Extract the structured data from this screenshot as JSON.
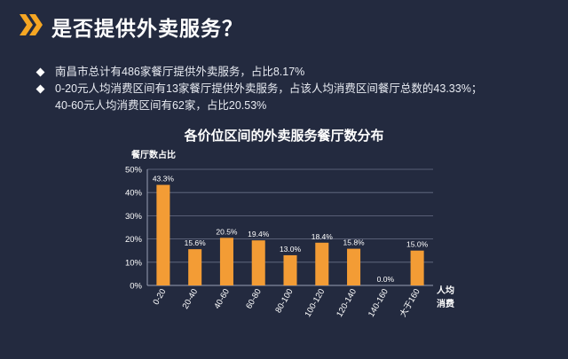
{
  "header": {
    "title": "是否提供外卖服务？"
  },
  "bullets": [
    "南昌市总计有486家餐厅提供外卖服务，占比8.17%",
    "0-20元人均消费区间有13家餐厅提供外卖服务，占该人均消费区间餐厅总数的43.33%；",
    "40-60元人均消费区间有62家，占比20.53%"
  ],
  "colors": {
    "background": "#232a3f",
    "bar": "#f39c35",
    "accent": "#f5a623"
  },
  "chart_data": {
    "type": "bar",
    "title": "各价位区间的外卖服务餐厅数分布",
    "ylabel": "餐厅数占比",
    "xlabel": "人均消费",
    "ylim": [
      0,
      50
    ],
    "ytick_labels": [
      "0%",
      "10%",
      "20%",
      "30%",
      "40%",
      "50%"
    ],
    "categories": [
      "0-20",
      "20-40",
      "40-60",
      "60-80",
      "80-100",
      "100-120",
      "120-140",
      "140-160",
      "大于160"
    ],
    "values": [
      43.3,
      15.6,
      20.5,
      19.4,
      13.0,
      18.4,
      15.8,
      0.0,
      15.0
    ],
    "value_labels": [
      "43.3%",
      "15.6%",
      "20.5%",
      "19.4%",
      "13.0%",
      "18.4%",
      "15.8%",
      "0.0%",
      "15.0%"
    ],
    "grid": true
  }
}
